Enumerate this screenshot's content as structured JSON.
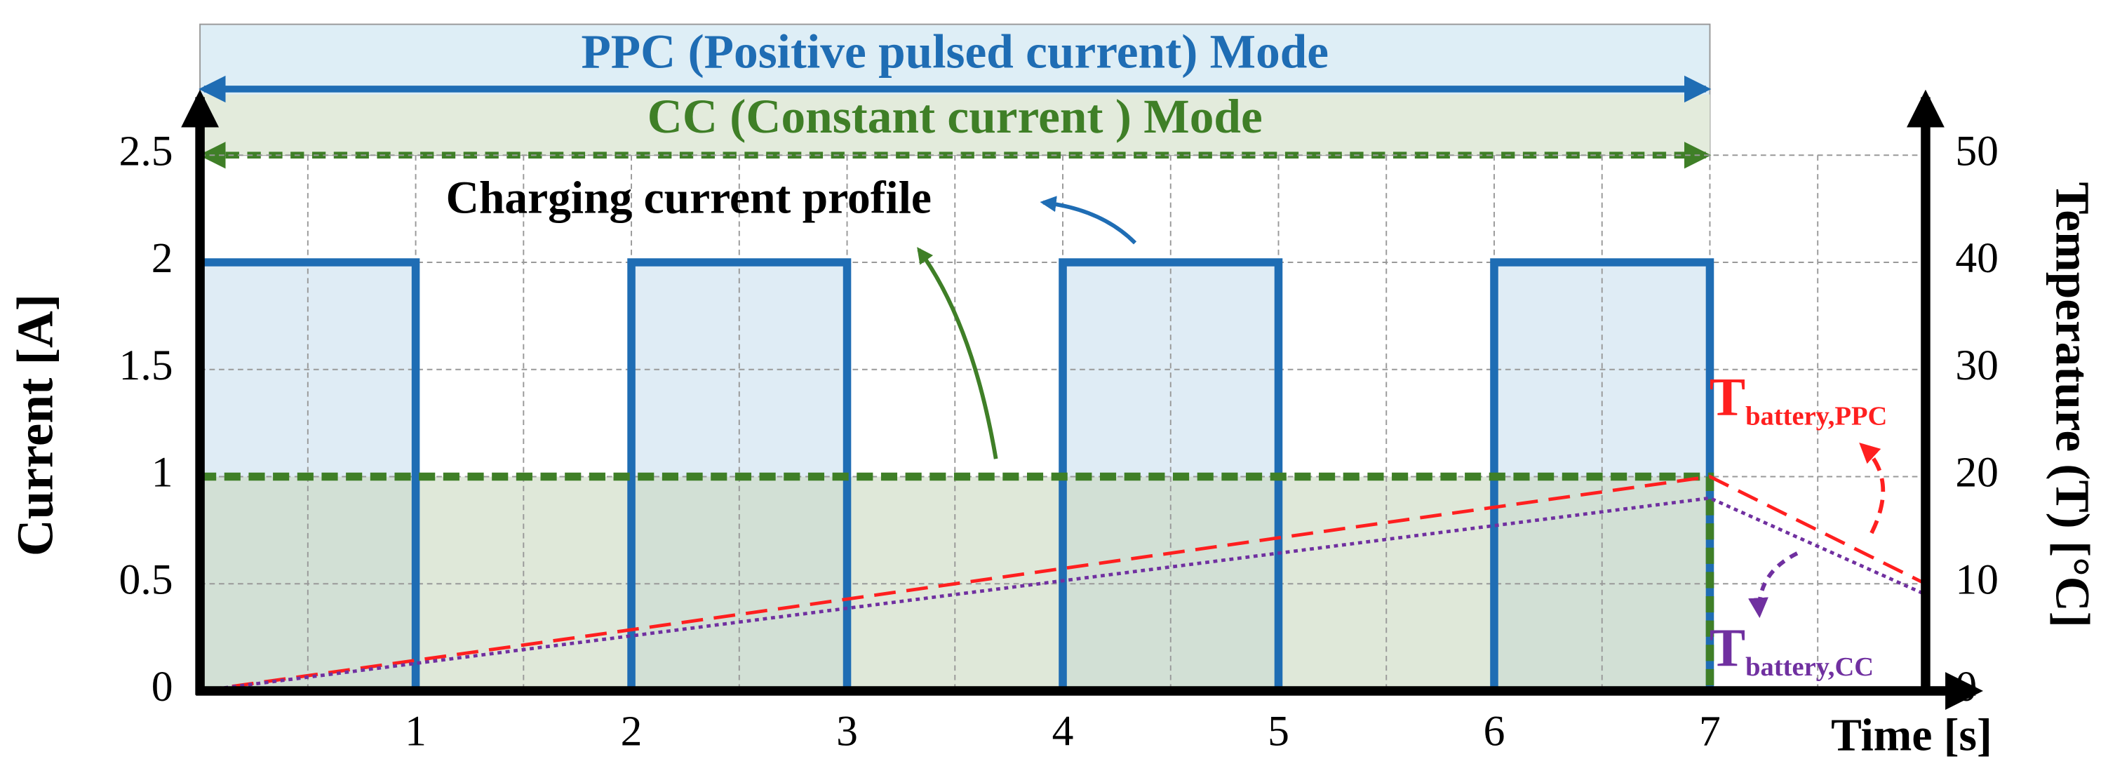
{
  "chart_data": {
    "type": "line",
    "title": "PPC (Positive pulsed current) Mode",
    "subtitle": "CC (Constant current ) Mode",
    "annotation": "Charging current profile",
    "x_label": "Time [s]",
    "y_label": "Current [A]",
    "y2_label": "Temperature (T) [°C]",
    "xlim": [
      0,
      8
    ],
    "xticks": [
      1,
      2,
      3,
      4,
      5,
      6,
      7
    ],
    "x_minor_grid": [
      0.5,
      1.5,
      2.5,
      3.5,
      4.5,
      5.5,
      6.5,
      7.5
    ],
    "ylim": [
      0,
      2.5
    ],
    "yticks": [
      0,
      0.5,
      1,
      1.5,
      2,
      2.5
    ],
    "y2lim": [
      0,
      50
    ],
    "y2ticks": [
      0,
      10,
      20,
      30,
      40,
      50
    ],
    "grid": true,
    "series": [
      {
        "color": "#1f6db4",
        "fill": "#c9e0ee",
        "style": "solid",
        "x": [
          0,
          1,
          1,
          2,
          2,
          3,
          3,
          4,
          4,
          5,
          5,
          6,
          6,
          7,
          7
        ],
        "values": [
          2,
          2,
          0,
          0,
          2,
          2,
          0,
          0,
          2,
          2,
          0,
          0,
          2,
          2,
          0
        ]
      },
      {
        "color": "#3f7f27",
        "fill": "#c9d9bf",
        "style": "dashed",
        "x": [
          0,
          7,
          7
        ],
        "values": [
          1,
          1,
          0
        ]
      },
      {
        "label": {
          "text": "T",
          "sub": "battery,PPC"
        },
        "color": "#ff1f1f",
        "style": "dash",
        "axis": "y2",
        "x": [
          0,
          7,
          8
        ],
        "values": [
          0,
          20,
          10
        ]
      },
      {
        "label": {
          "text": "T",
          "sub": "battery,CC"
        },
        "color": "#7030a0",
        "style": "dot",
        "axis": "y2",
        "x": [
          0,
          7,
          8
        ],
        "values": [
          0,
          18,
          9
        ]
      }
    ]
  }
}
